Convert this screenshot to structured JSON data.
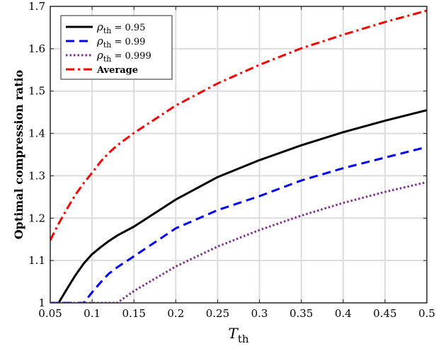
{
  "chart_data": {
    "type": "line",
    "title": "",
    "xlabel": {
      "main": "T",
      "sub": "th"
    },
    "ylabel": "Optimal compression ratio",
    "xlim": [
      0.05,
      0.5
    ],
    "ylim": [
      1,
      1.7
    ],
    "grid": true,
    "legend_position": "top-left",
    "x_ticks": [
      "0.05",
      "0.1",
      "0.15",
      "0.2",
      "0.25",
      "0.3",
      "0.35",
      "0.4",
      "0.45",
      "0.5"
    ],
    "y_ticks": [
      "1",
      "1.1",
      "1.2",
      "1.3",
      "1.4",
      "1.5",
      "1.6",
      "1.7"
    ],
    "x": [
      0.05,
      0.06,
      0.07,
      0.08,
      0.09,
      0.1,
      0.11,
      0.12,
      0.13,
      0.15,
      0.2,
      0.25,
      0.3,
      0.35,
      0.4,
      0.45,
      0.5
    ],
    "series": [
      {
        "name": "ρ_th = 0.95",
        "legend_symbol": "ρ",
        "legend_sub": "th",
        "legend_value": " = 0.95",
        "color": "#000000",
        "style": "solid",
        "values": [
          0.985,
          1.0,
          1.033,
          1.065,
          1.093,
          1.115,
          1.131,
          1.146,
          1.159,
          1.18,
          1.244,
          1.297,
          1.337,
          1.372,
          1.403,
          1.43,
          1.455
        ]
      },
      {
        "name": "ρ_th = 0.99",
        "legend_symbol": "ρ",
        "legend_sub": "th",
        "legend_value": " = 0.99",
        "color": "#0000ff",
        "style": "dashed",
        "values": [
          1.0,
          1.0,
          1.0,
          1.0,
          1.0,
          1.025,
          1.048,
          1.069,
          1.084,
          1.11,
          1.176,
          1.219,
          1.252,
          1.289,
          1.318,
          1.343,
          1.368
        ]
      },
      {
        "name": "ρ_th = 0.999",
        "legend_symbol": "ρ",
        "legend_sub": "th",
        "legend_value": " = 0.999",
        "color": "#7e2f8e",
        "style": "dotted",
        "values": [
          1.0,
          1.0,
          1.0,
          1.0,
          1.0,
          1.0,
          1.0,
          1.0,
          1.0,
          1.028,
          1.086,
          1.133,
          1.172,
          1.206,
          1.236,
          1.262,
          1.285
        ]
      },
      {
        "name": "Average",
        "legend_symbol": "",
        "legend_sub": "",
        "legend_value": "Average",
        "color": "#ff0000",
        "style": "dashdot",
        "values": [
          1.148,
          1.187,
          1.222,
          1.255,
          1.283,
          1.307,
          1.333,
          1.354,
          1.372,
          1.401,
          1.466,
          1.518,
          1.562,
          1.601,
          1.633,
          1.663,
          1.69
        ]
      }
    ]
  }
}
